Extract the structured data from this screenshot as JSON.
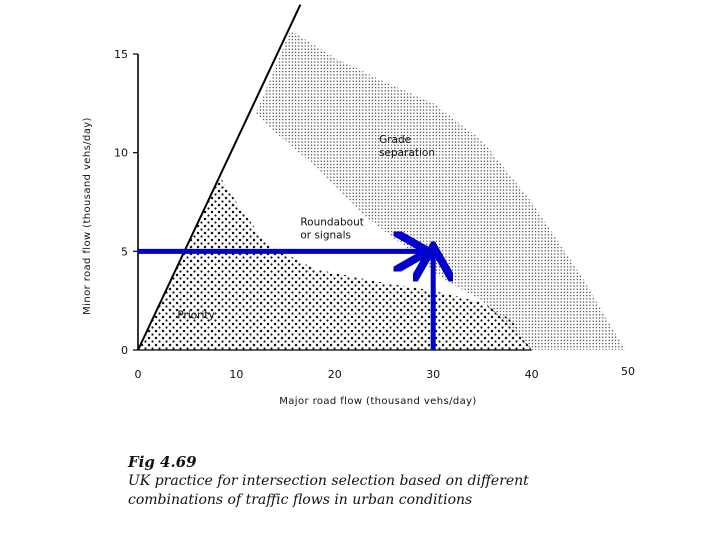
{
  "chart_data": {
    "type": "area",
    "xlabel": "Major road flow (thousand vehs/day)",
    "ylabel": "Minor road flow (thousand vehs/day)",
    "xlim": [
      0,
      50
    ],
    "ylim": [
      0,
      15
    ],
    "x_ticks": [
      0,
      10,
      20,
      30,
      40,
      50
    ],
    "y_ticks": [
      0,
      5,
      10,
      15
    ],
    "grid": false,
    "boundary_line": [
      [
        0,
        0
      ],
      [
        16.5,
        17.5
      ]
    ],
    "regions": [
      {
        "name": "Priority",
        "label": "Priority",
        "label_at": [
          4,
          1.6
        ],
        "pattern": "coarse-dots",
        "polygon": [
          [
            0,
            0
          ],
          [
            8.3,
            8.8
          ],
          [
            10,
            7.5
          ],
          [
            13,
            5.4
          ],
          [
            18,
            4.1
          ],
          [
            25,
            3.4
          ],
          [
            30,
            3
          ],
          [
            35,
            2.4
          ],
          [
            38,
            1.5
          ],
          [
            40,
            0
          ]
        ]
      },
      {
        "name": "Roundabout or signals",
        "label": "Roundabout\nor signals",
        "label_at": [
          16.5,
          6.3
        ],
        "pattern": "none",
        "polygon": []
      },
      {
        "name": "Grade separation",
        "label": "Grade\nseparation",
        "label_at": [
          24.5,
          10.5
        ],
        "pattern": "fine-dots",
        "polygon": [
          [
            12,
            12
          ],
          [
            15.5,
            16.2
          ],
          [
            20,
            14.8
          ],
          [
            25,
            13.6
          ],
          [
            30,
            12.5
          ],
          [
            35,
            10.6
          ],
          [
            40,
            7.5
          ],
          [
            45,
            3.8
          ],
          [
            49.5,
            0
          ],
          [
            40,
            0
          ],
          [
            35,
            2.5
          ],
          [
            31,
            3.6
          ],
          [
            28,
            4.9
          ],
          [
            23,
            6.8
          ],
          [
            18,
            9.3
          ],
          [
            14,
            11
          ]
        ]
      }
    ],
    "annotations": [
      {
        "type": "arrow",
        "color": "#0000cc",
        "from": [
          0,
          5
        ],
        "to": [
          29,
          5
        ]
      },
      {
        "type": "arrow",
        "color": "#0000cc",
        "from": [
          30,
          0
        ],
        "to": [
          30,
          5
        ]
      }
    ]
  },
  "caption": {
    "figure_number": "Fig 4.69",
    "text": "UK practice for intersection selection based on different combinations of traffic flows in urban conditions"
  }
}
